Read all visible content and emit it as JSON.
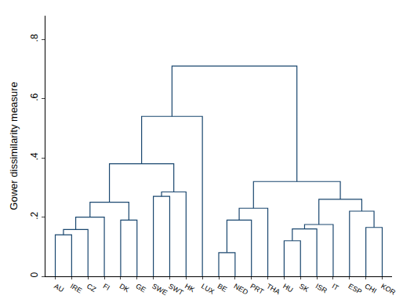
{
  "chart_data": {
    "type": "dendrogram",
    "y_label": "Gower dissimilarity measure",
    "categories": [
      "AU",
      "IRE",
      "CZ",
      "FI",
      "DK",
      "GE",
      "SWE",
      "SWT",
      "HK",
      "LUX",
      "BE",
      "NED",
      "PRT",
      "THA",
      "HU",
      "SK",
      "ISR",
      "IT",
      "ESP",
      "CHI",
      "KOR"
    ],
    "merges": [
      {
        "left": 0,
        "right": 1,
        "height": 0.14
      },
      {
        "left": 21,
        "right": 2,
        "height": 0.158
      },
      {
        "left": 22,
        "right": 3,
        "height": 0.2
      },
      {
        "left": 4,
        "right": 5,
        "height": 0.19
      },
      {
        "left": 23,
        "right": 24,
        "height": 0.25
      },
      {
        "left": 6,
        "right": 7,
        "height": 0.27
      },
      {
        "left": 26,
        "right": 8,
        "height": 0.285
      },
      {
        "left": 25,
        "right": 27,
        "height": 0.38
      },
      {
        "left": 28,
        "right": 9,
        "height": 0.54
      },
      {
        "left": 10,
        "right": 11,
        "height": 0.08
      },
      {
        "left": 30,
        "right": 12,
        "height": 0.19
      },
      {
        "left": 31,
        "right": 13,
        "height": 0.23
      },
      {
        "left": 14,
        "right": 15,
        "height": 0.12
      },
      {
        "left": 33,
        "right": 16,
        "height": 0.16
      },
      {
        "left": 34,
        "right": 17,
        "height": 0.175
      },
      {
        "left": 19,
        "right": 20,
        "height": 0.165
      },
      {
        "left": 18,
        "right": 36,
        "height": 0.22
      },
      {
        "left": 35,
        "right": 37,
        "height": 0.26
      },
      {
        "left": 32,
        "right": 38,
        "height": 0.32
      },
      {
        "left": 29,
        "right": 39,
        "height": 0.71
      }
    ],
    "color": "#1a476f",
    "ylim": [
      0,
      0.88
    ],
    "yticks": [
      0,
      {
        "value": 0.2,
        "label": ".2"
      },
      {
        "value": 0.4,
        "label": ".4"
      },
      {
        "value": 0.6,
        "label": ".6"
      },
      {
        "value": 0.8,
        "label": ".8"
      }
    ],
    "grid": false
  }
}
